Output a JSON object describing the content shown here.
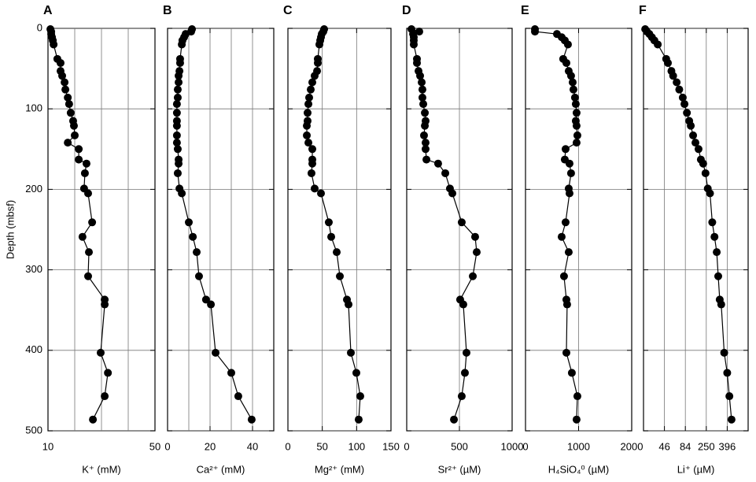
{
  "chart_data": [
    {
      "type": "line",
      "panel": "A",
      "xlabel": "K⁺ (mM)",
      "ylabel": "Depth (mbsf)",
      "ytick_labels": true,
      "xlim": [
        10,
        50
      ],
      "xticks": [
        10,
        50
      ],
      "xgrid": [
        20,
        30,
        40
      ],
      "ylim": [
        500,
        0
      ],
      "yticks": [
        0,
        100,
        200,
        300,
        400,
        500
      ],
      "grid": true,
      "color": "#000000",
      "y": [
        1,
        4,
        7,
        11,
        15,
        20,
        38,
        43,
        53,
        59,
        67,
        76,
        86,
        94,
        105,
        115,
        121,
        133,
        142,
        150,
        163,
        168,
        180,
        199,
        205,
        241,
        259,
        278,
        308,
        337,
        343,
        403,
        428,
        457,
        486
      ],
      "x": [
        10.9,
        11.2,
        11.2,
        11.5,
        11.8,
        12.1,
        13.5,
        14.7,
        14.7,
        15.3,
        16.2,
        16.5,
        17.4,
        17.9,
        18.5,
        19.4,
        19.7,
        20.0,
        17.4,
        21.5,
        21.5,
        24.4,
        23.8,
        23.5,
        25.0,
        26.5,
        22.9,
        25.3,
        25.0,
        31.2,
        31.2,
        29.7,
        32.4,
        31.2,
        26.8
      ]
    },
    {
      "type": "line",
      "panel": "B",
      "xlabel": "Ca²⁺ (mM)",
      "ytick_labels": false,
      "xlim": [
        0,
        50
      ],
      "xticks": [
        0,
        20,
        40
      ],
      "xgrid": [
        10,
        20,
        30,
        40
      ],
      "ylim": [
        500,
        0
      ],
      "yticks": [
        0,
        100,
        200,
        300,
        400,
        500
      ],
      "grid": true,
      "color": "#000000",
      "y": [
        1,
        4,
        7,
        11,
        15,
        20,
        38,
        43,
        53,
        59,
        67,
        76,
        86,
        94,
        105,
        115,
        121,
        133,
        142,
        150,
        163,
        168,
        180,
        199,
        205,
        241,
        259,
        278,
        308,
        337,
        343,
        403,
        428,
        457,
        486
      ],
      "x": [
        11.5,
        11.1,
        8.5,
        7.8,
        7.0,
        6.7,
        5.9,
        5.9,
        5.6,
        5.2,
        5.2,
        4.8,
        4.8,
        4.4,
        4.4,
        4.4,
        4.4,
        4.4,
        4.4,
        4.8,
        5.2,
        5.2,
        4.8,
        5.6,
        6.7,
        10.0,
        11.9,
        13.7,
        14.8,
        18.1,
        20.4,
        22.6,
        30.0,
        33.3,
        39.6
      ]
    },
    {
      "type": "line",
      "panel": "C",
      "xlabel": "Mg²⁺ (mM)",
      "ytick_labels": false,
      "xlim": [
        0,
        150
      ],
      "xticks": [
        0,
        50,
        100,
        150
      ],
      "xgrid": [
        50,
        100
      ],
      "ylim": [
        500,
        0
      ],
      "yticks": [
        0,
        100,
        200,
        300,
        400,
        500
      ],
      "grid": true,
      "color": "#000000",
      "y": [
        1,
        4,
        7,
        11,
        15,
        20,
        38,
        43,
        53,
        59,
        67,
        76,
        86,
        94,
        105,
        115,
        121,
        133,
        142,
        150,
        163,
        168,
        180,
        199,
        205,
        241,
        259,
        278,
        308,
        337,
        343,
        403,
        428,
        457,
        486
      ],
      "x": [
        52.7,
        51.5,
        49.2,
        48.1,
        47.0,
        45.8,
        43.5,
        43.5,
        42.4,
        38.9,
        35.5,
        33.2,
        30.9,
        29.8,
        28.6,
        28.6,
        27.5,
        27.5,
        29.8,
        35.5,
        35.5,
        35.5,
        34.3,
        38.9,
        48.1,
        59.5,
        63.0,
        71.0,
        75.6,
        85.9,
        88.2,
        91.6,
        99.6,
        105.3,
        103.0
      ]
    },
    {
      "type": "line",
      "panel": "D",
      "xlabel": "Sr²⁺ (µM)",
      "ytick_labels": false,
      "xlim": [
        0,
        1000
      ],
      "xticks": [
        0,
        500,
        1000
      ],
      "xgrid": [
        500
      ],
      "ylim": [
        500,
        0
      ],
      "yticks": [
        0,
        100,
        200,
        300,
        400,
        500
      ],
      "grid": true,
      "color": "#000000",
      "y": [
        1,
        4,
        7,
        11,
        15,
        20,
        38,
        43,
        53,
        59,
        67,
        76,
        86,
        94,
        105,
        115,
        121,
        133,
        142,
        150,
        163,
        168,
        180,
        199,
        205,
        241,
        259,
        278,
        308,
        337,
        343,
        403,
        428,
        457,
        486
      ],
      "x": [
        45,
        119,
        60,
        67,
        67,
        67,
        97,
        97,
        112,
        127,
        142,
        149,
        149,
        157,
        172,
        179,
        172,
        164,
        179,
        179,
        187,
        298,
        366,
        410,
        433,
        522,
        649,
        664,
        627,
        507,
        537,
        567,
        552,
        522,
        448
      ]
    },
    {
      "type": "line",
      "panel": "E",
      "xlabel": "H₄SiO₄⁰ (µM)",
      "ytick_labels": false,
      "xlim": [
        0,
        2000
      ],
      "xticks": [
        0,
        1000,
        2000
      ],
      "xgrid": [
        1000
      ],
      "ylim": [
        500,
        0
      ],
      "yticks": [
        0,
        100,
        200,
        300,
        400,
        500
      ],
      "grid": true,
      "color": "#000000",
      "y": [
        1,
        4,
        7,
        11,
        15,
        20,
        38,
        43,
        53,
        59,
        67,
        76,
        86,
        94,
        105,
        115,
        121,
        133,
        142,
        150,
        163,
        168,
        180,
        199,
        205,
        241,
        259,
        278,
        308,
        337,
        343,
        403,
        428,
        457,
        486
      ],
      "x": [
        178,
        178,
        592,
        681,
        740,
        799,
        710,
        770,
        814,
        858,
        888,
        903,
        932,
        947,
        962,
        947,
        962,
        977,
        962,
        755,
        740,
        829,
        858,
        814,
        829,
        755,
        681,
        814,
        725,
        770,
        784,
        770,
        873,
        977,
        962
      ]
    },
    {
      "type": "line",
      "panel": "F",
      "xlabel": "Li⁺ (µM)",
      "ytick_labels": false,
      "xlim": [
        0,
        500
      ],
      "xticks": [
        46,
        84,
        250,
        396
      ],
      "xgrid": true,
      "xscale": "piecewise",
      "ylim": [
        500,
        0
      ],
      "yticks": [
        0,
        100,
        200,
        300,
        400,
        500
      ],
      "grid": true,
      "color": "#000000",
      "y": [
        1,
        4,
        7,
        11,
        15,
        20,
        38,
        43,
        53,
        59,
        67,
        76,
        86,
        94,
        105,
        115,
        121,
        133,
        142,
        150,
        163,
        168,
        180,
        199,
        205,
        241,
        259,
        278,
        308,
        337,
        343,
        403,
        428,
        457,
        486
      ],
      "x": [
        3.7,
        7.4,
        12.9,
        18.4,
        23.9,
        31.3,
        49.2,
        52.3,
        58.7,
        61.8,
        68.2,
        72.9,
        79.3,
        82.4,
        96.3,
        114.7,
        127,
        145.5,
        164,
        188.6,
        207,
        225.4,
        243.9,
        260.4,
        276,
        291.7,
        307.3,
        322.9,
        333.4,
        343.8,
        354.3,
        375.1,
        396,
        406.8,
        417.5
      ]
    }
  ]
}
